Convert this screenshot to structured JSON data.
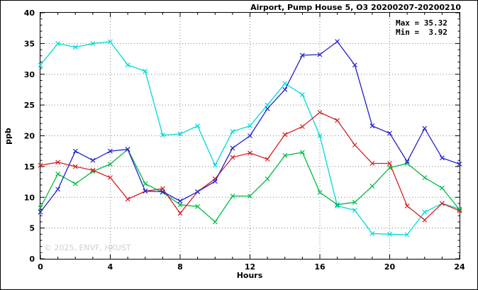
{
  "title": "Airport, Pump House 5, O3 20200207-20200210",
  "annotation": {
    "max": "Max = 35.32",
    "min": "Min =  3.92"
  },
  "watermark": "© 2025, ENVF, HKUST",
  "chart_data": {
    "type": "line",
    "title": "Airport, Pump House 5, O3 20200207-20200210",
    "xlabel": "Hours",
    "ylabel": "ppb",
    "xlim": [
      0,
      24
    ],
    "ylim": [
      0,
      40
    ],
    "xticks": [
      0,
      4,
      8,
      12,
      16,
      20,
      24
    ],
    "yticks": [
      0,
      5,
      10,
      15,
      20,
      25,
      30,
      35,
      40
    ],
    "grid": true,
    "legend": "none",
    "max_value": 35.32,
    "min_value": 3.92,
    "x": [
      0,
      1,
      2,
      3,
      4,
      5,
      6,
      7,
      8,
      9,
      10,
      11,
      12,
      13,
      14,
      15,
      16,
      17,
      18,
      19,
      20,
      21,
      22,
      23,
      24
    ],
    "series": [
      {
        "name": "series-cyan",
        "color": "#00d8d8",
        "values": [
          31.5,
          35.0,
          34.4,
          35.0,
          35.3,
          31.5,
          30.5,
          20.1,
          20.3,
          21.6,
          15.2,
          20.7,
          21.6,
          25.0,
          28.5,
          26.7,
          20.0,
          8.6,
          7.9,
          4.1,
          4.0,
          3.92,
          7.6,
          9.0,
          8.1
        ]
      },
      {
        "name": "series-green",
        "color": "#00bb44",
        "values": [
          8.3,
          13.8,
          12.2,
          14.2,
          15.4,
          17.8,
          12.2,
          10.8,
          8.8,
          8.5,
          6.0,
          10.2,
          10.2,
          13.0,
          16.8,
          17.3,
          10.8,
          8.8,
          9.2,
          11.8,
          14.8,
          15.5,
          13.2,
          11.5,
          8.0
        ]
      },
      {
        "name": "series-red",
        "color": "#d62020",
        "values": [
          15.2,
          15.7,
          15.0,
          14.4,
          13.2,
          9.7,
          11.0,
          11.4,
          7.4,
          10.9,
          13.0,
          16.5,
          17.2,
          16.2,
          20.2,
          21.5,
          23.8,
          22.5,
          18.5,
          15.5,
          15.5,
          8.6,
          6.3,
          9.0,
          7.8
        ]
      },
      {
        "name": "series-blue",
        "color": "#2222cc",
        "values": [
          7.6,
          11.3,
          17.5,
          16.0,
          17.5,
          17.8,
          11.0,
          10.9,
          9.4,
          10.9,
          12.6,
          18.0,
          20.0,
          24.4,
          27.5,
          33.1,
          33.2,
          35.32,
          31.5,
          21.6,
          20.4,
          15.8,
          21.2,
          16.4,
          15.4
        ]
      }
    ]
  }
}
